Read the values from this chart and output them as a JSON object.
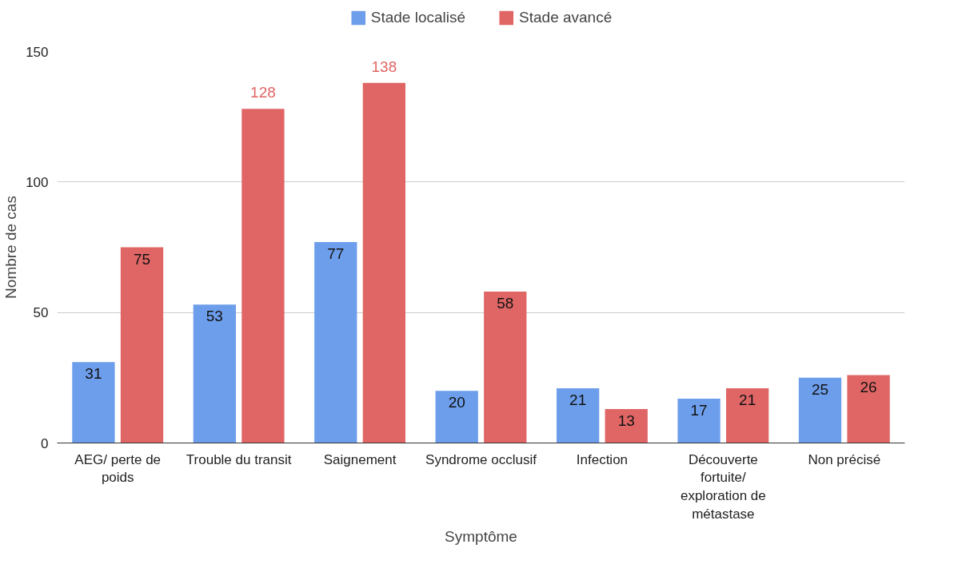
{
  "chart_data": {
    "type": "bar",
    "xlabel": "Symptôme",
    "ylabel": "Nombre de cas",
    "categories": [
      "AEG/ perte de poids",
      "Trouble du transit",
      "Saignement",
      "Syndrome occlusif",
      "Infection",
      "Découverte fortuite/ exploration de métastase",
      "Non précisé"
    ],
    "series": [
      {
        "name": "Stade localisé",
        "color": "#6d9eeb",
        "values": [
          31,
          53,
          77,
          20,
          21,
          17,
          25
        ]
      },
      {
        "name": "Stade avancé",
        "color": "#e06666",
        "values": [
          75,
          128,
          138,
          58,
          13,
          21,
          26
        ]
      }
    ],
    "ylim": [
      0,
      150
    ],
    "yticks": [
      0,
      50,
      100,
      150
    ],
    "grid": "y",
    "legend": "top",
    "data_labels": true
  }
}
